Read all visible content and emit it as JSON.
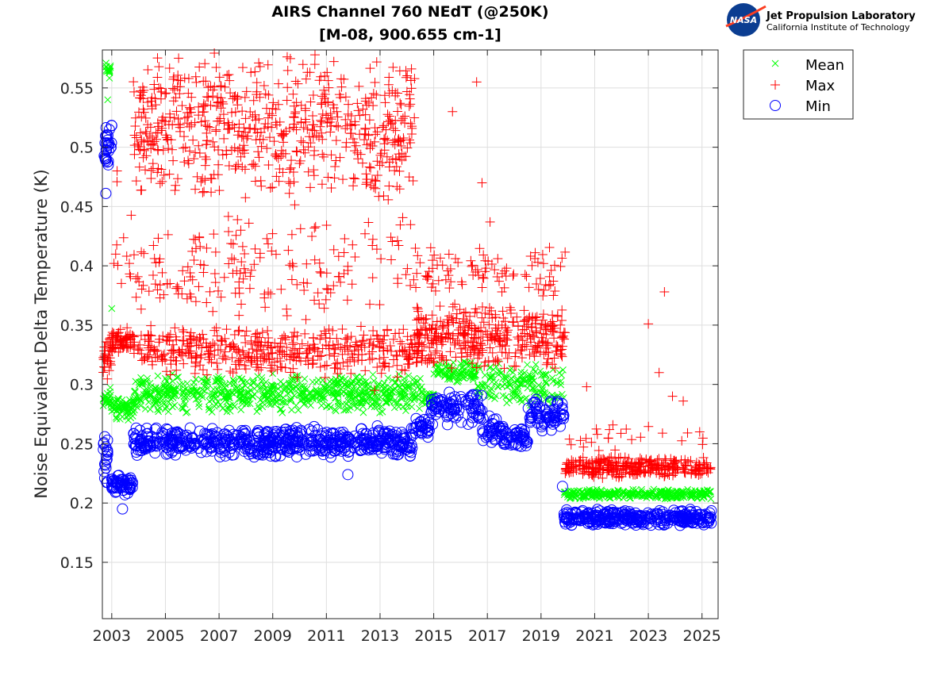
{
  "chart_data": {
    "type": "scatter",
    "title": [
      "AIRS Channel 760 NEdT (@250K)",
      "[M-08, 900.655 cm-1]"
    ],
    "xlabel": "",
    "ylabel": "Noise Equivalent Delta Temperature (K)",
    "xlim": [
      2002.65,
      2025.6
    ],
    "ylim": [
      0.1025,
      0.582
    ],
    "xticks": [
      2003,
      2005,
      2007,
      2009,
      2011,
      2013,
      2015,
      2017,
      2019,
      2021,
      2023,
      2025
    ],
    "xtick_labels": [
      "2003",
      "2005",
      "2007",
      "2009",
      "2011",
      "2013",
      "2015",
      "2017",
      "2019",
      "2021",
      "2023",
      "2025"
    ],
    "yticks": [
      0.15,
      0.2,
      0.25,
      0.3,
      0.35,
      0.4,
      0.45,
      0.5,
      0.55
    ],
    "ytick_labels": [
      "0.15",
      "0.2",
      "0.25",
      "0.3",
      "0.35",
      "0.4",
      "0.45",
      "0.5",
      "0.55"
    ],
    "grid": true,
    "legend": {
      "placement": "outside-top-right",
      "entries": [
        "Mean",
        "Max",
        "Min"
      ]
    },
    "series": [
      {
        "name": "Mean",
        "marker": "x",
        "color": "#00ff00",
        "bands": [
          {
            "x": [
              2002.75,
              2002.95
            ],
            "y": [
              0.555,
              0.575
            ],
            "n": 15
          },
          {
            "x": [
              2002.68,
              2003.0
            ],
            "y": [
              0.275,
              0.3
            ],
            "n": 25
          },
          {
            "x": [
              2003.0,
              2003.8
            ],
            "y": [
              0.268,
              0.292
            ],
            "n": 60
          },
          {
            "x": [
              2003.8,
              2014.6
            ],
            "y": [
              0.275,
              0.31
            ],
            "n": 700
          },
          {
            "x": [
              2014.6,
              2015.0
            ],
            "y": [
              0.28,
              0.295
            ],
            "n": 25
          },
          {
            "x": [
              2015.0,
              2016.6
            ],
            "y": [
              0.3,
              0.32
            ],
            "n": 90
          },
          {
            "x": [
              2016.6,
              2019.85
            ],
            "y": [
              0.28,
              0.32
            ],
            "n": 160
          },
          {
            "x": [
              2019.85,
              2025.35
            ],
            "y": [
              0.203,
              0.212
            ],
            "n": 300
          }
        ],
        "points": [
          [
            2003.0,
            0.364
          ],
          [
            2002.85,
            0.54
          ]
        ]
      },
      {
        "name": "Max",
        "marker": "+",
        "color": "#ff0000",
        "bands": [
          {
            "x": [
              2002.68,
              2003.0
            ],
            "y": [
              0.3,
              0.345
            ],
            "n": 30
          },
          {
            "x": [
              2003.0,
              2003.8
            ],
            "y": [
              0.325,
              0.35
            ],
            "n": 60
          },
          {
            "x": [
              2003.0,
              2003.8
            ],
            "y": [
              0.35,
              0.48
            ],
            "n": 12
          },
          {
            "x": [
              2003.8,
              2014.3
            ],
            "y": [
              0.45,
              0.582
            ],
            "n": 650
          },
          {
            "x": [
              2003.8,
              2014.3
            ],
            "y": [
              0.35,
              0.45
            ],
            "n": 180
          },
          {
            "x": [
              2003.8,
              2014.3
            ],
            "y": [
              0.305,
              0.35
            ],
            "n": 450
          },
          {
            "x": [
              2014.3,
              2019.9
            ],
            "y": [
              0.31,
              0.37
            ],
            "n": 380
          },
          {
            "x": [
              2014.3,
              2019.9
            ],
            "y": [
              0.37,
              0.42
            ],
            "n": 90
          },
          {
            "x": [
              2019.9,
              2025.35
            ],
            "y": [
              0.22,
              0.24
            ],
            "n": 320
          },
          {
            "x": [
              2019.9,
              2025.35
            ],
            "y": [
              0.24,
              0.27
            ],
            "n": 25
          }
        ],
        "points": [
          [
            2015.7,
            0.53
          ],
          [
            2016.6,
            0.555
          ],
          [
            2016.8,
            0.47
          ],
          [
            2017.1,
            0.437
          ],
          [
            2023.0,
            0.351
          ],
          [
            2023.6,
            0.378
          ],
          [
            2023.4,
            0.31
          ],
          [
            2020.7,
            0.298
          ],
          [
            2024.3,
            0.286
          ],
          [
            2023.9,
            0.29
          ],
          [
            2012.8,
            0.295
          ],
          [
            2003.2,
            0.48
          ]
        ]
      },
      {
        "name": "Min",
        "marker": "o",
        "color": "#0000ff",
        "bands": [
          {
            "x": [
              2002.72,
              2003.0
            ],
            "y": [
              0.48,
              0.522
            ],
            "n": 30
          },
          {
            "x": [
              2002.68,
              2002.85
            ],
            "y": [
              0.21,
              0.27
            ],
            "n": 20
          },
          {
            "x": [
              2003.0,
              2003.8
            ],
            "y": [
              0.205,
              0.225
            ],
            "n": 60
          },
          {
            "x": [
              2003.8,
              2014.3
            ],
            "y": [
              0.238,
              0.265
            ],
            "n": 600
          },
          {
            "x": [
              2014.3,
              2014.9
            ],
            "y": [
              0.25,
              0.275
            ],
            "n": 30
          },
          {
            "x": [
              2014.9,
              2016.8
            ],
            "y": [
              0.265,
              0.295
            ],
            "n": 90
          },
          {
            "x": [
              2016.8,
              2017.6
            ],
            "y": [
              0.25,
              0.275
            ],
            "n": 40
          },
          {
            "x": [
              2017.6,
              2018.5
            ],
            "y": [
              0.245,
              0.265
            ],
            "n": 45
          },
          {
            "x": [
              2018.5,
              2019.85
            ],
            "y": [
              0.26,
              0.29
            ],
            "n": 70
          },
          {
            "x": [
              2019.85,
              2025.35
            ],
            "y": [
              0.18,
              0.195
            ],
            "n": 320
          }
        ],
        "points": [
          [
            2002.78,
            0.461
          ],
          [
            2011.8,
            0.224
          ],
          [
            2003.4,
            0.195
          ],
          [
            2019.8,
            0.214
          ],
          [
            2012.9,
            0.265
          ]
        ]
      }
    ]
  },
  "logo": {
    "line1": "Jet Propulsion Laboratory",
    "line2": "California Institute of Technology",
    "badge": "NASA"
  }
}
